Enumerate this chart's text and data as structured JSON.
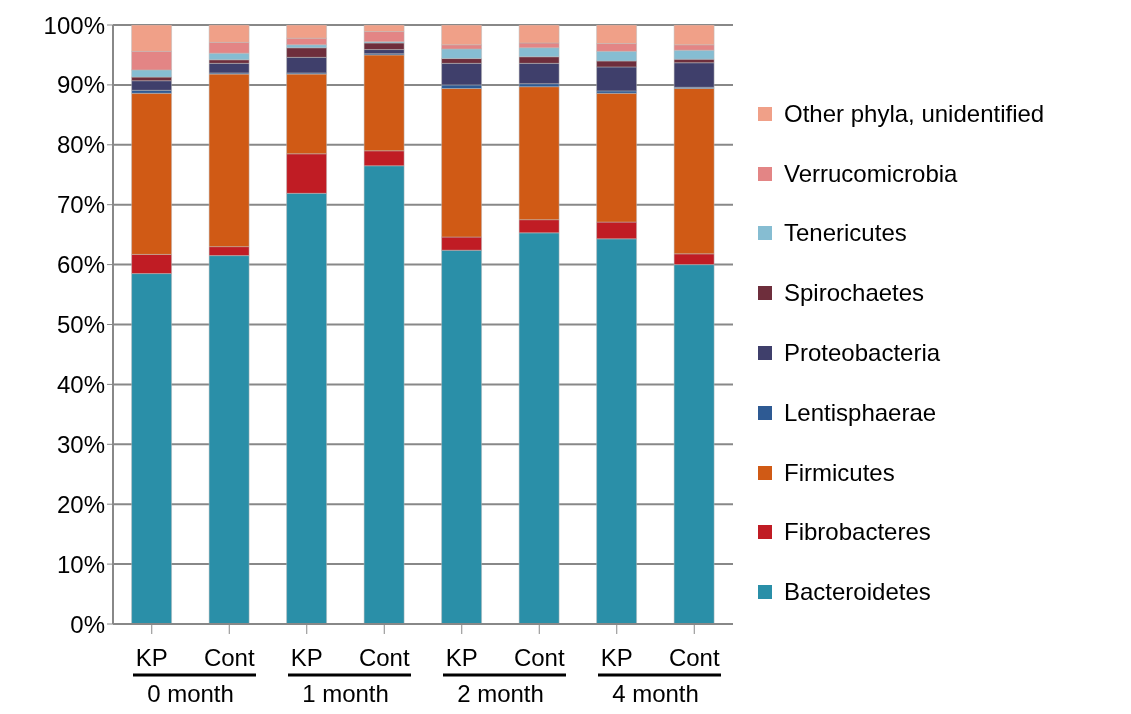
{
  "chart_data": {
    "type": "bar",
    "stacked": true,
    "categories": [
      "KP",
      "Cont",
      "KP",
      "Cont",
      "KP",
      "Cont",
      "KP",
      "Cont"
    ],
    "annotations": [
      "0 month",
      "1 month",
      "2 month",
      "4 month"
    ],
    "ylim": [
      0,
      100
    ],
    "yticks": [
      {
        "value": 0,
        "label": "0%"
      },
      {
        "value": 10,
        "label": "10%"
      },
      {
        "value": 20,
        "label": "20%"
      },
      {
        "value": 30,
        "label": "30%"
      },
      {
        "value": 40,
        "label": "40%"
      },
      {
        "value": 50,
        "label": "50%"
      },
      {
        "value": 60,
        "label": "60%"
      },
      {
        "value": 70,
        "label": "70%"
      },
      {
        "value": 80,
        "label": "80%"
      },
      {
        "value": 90,
        "label": "90%"
      },
      {
        "value": 100,
        "label": "100%"
      }
    ],
    "grid": "y",
    "legend": "right",
    "series": [
      {
        "name": "Bacteroidetes",
        "color": "#2a8fa8",
        "values": [
          58.5,
          61.5,
          71.9,
          76.5,
          62.4,
          65.3,
          64.3,
          60.0
        ]
      },
      {
        "name": "Fibrobacteres",
        "color": "#c01c24",
        "values": [
          3.2,
          1.5,
          6.6,
          2.5,
          2.2,
          2.2,
          2.8,
          1.8
        ]
      },
      {
        "name": "Firmicutes",
        "color": "#d05a15",
        "values": [
          26.9,
          28.8,
          13.3,
          16.0,
          24.8,
          22.2,
          21.5,
          27.6
        ]
      },
      {
        "name": "Lentisphaerae",
        "color": "#2e5a93",
        "values": [
          0.5,
          0.2,
          0.2,
          0.2,
          0.6,
          0.5,
          0.4,
          0.2
        ]
      },
      {
        "name": "Proteobacteria",
        "color": "#3f3f6b",
        "values": [
          1.6,
          1.6,
          2.6,
          0.7,
          3.6,
          3.4,
          4.0,
          4.1
        ]
      },
      {
        "name": "Spirochaetes",
        "color": "#6e2e3c",
        "values": [
          0.6,
          0.6,
          1.6,
          1.1,
          0.8,
          1.1,
          1.0,
          0.6
        ]
      },
      {
        "name": "Tenericutes",
        "color": "#86bdd2",
        "values": [
          1.2,
          1.1,
          0.5,
          0.2,
          1.6,
          1.5,
          1.6,
          1.5
        ]
      },
      {
        "name": "Verrucomicrobia",
        "color": "#e38585",
        "values": [
          3.1,
          1.8,
          1.1,
          1.7,
          0.7,
          0.8,
          1.3,
          0.9
        ]
      },
      {
        "name": "Other phyla, unidentified",
        "color": "#f0a088",
        "values": [
          4.4,
          2.9,
          2.2,
          1.1,
          3.3,
          3.0,
          3.1,
          3.3
        ]
      }
    ]
  }
}
